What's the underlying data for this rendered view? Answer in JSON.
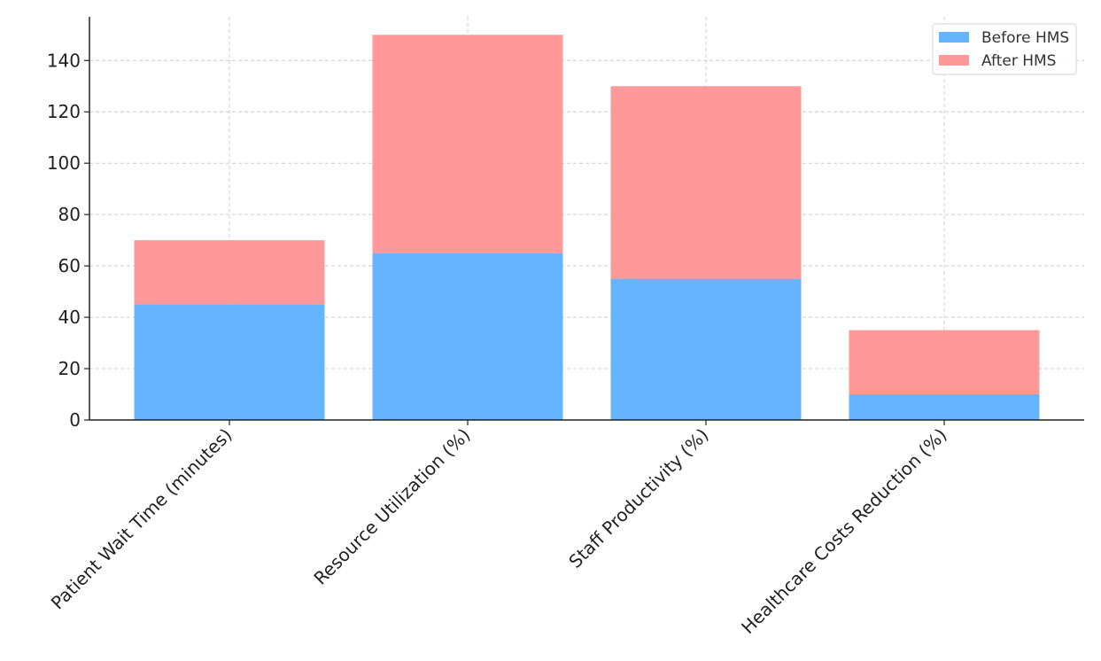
{
  "chart_data": {
    "type": "bar",
    "stacked": true,
    "title": "",
    "xlabel": "",
    "ylabel": "",
    "categories": [
      "Patient Wait Time (minutes)",
      "Resource Utilization (%)",
      "Staff Productivity (%)",
      "Healthcare Costs Reduction (%)"
    ],
    "series": [
      {
        "name": "Before HMS",
        "values": [
          45,
          65,
          55,
          10
        ],
        "color": "#66b3ff"
      },
      {
        "name": "After HMS",
        "values": [
          25,
          85,
          75,
          25
        ],
        "color": "#ff9999"
      }
    ],
    "ylim": [
      0,
      157
    ],
    "yticks": [
      0,
      20,
      40,
      60,
      80,
      100,
      120,
      140
    ],
    "grid": true,
    "legend_position": "top-right"
  }
}
